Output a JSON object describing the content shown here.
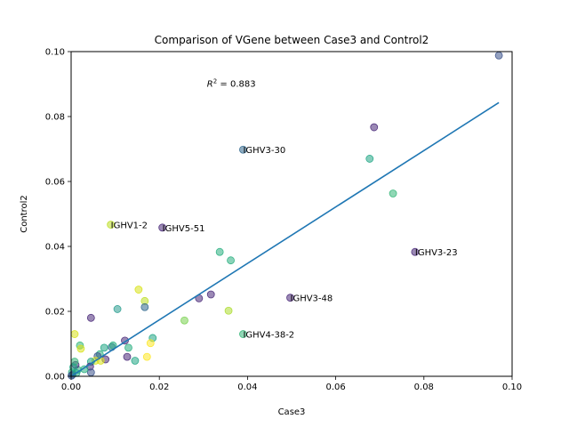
{
  "chart_data": {
    "type": "scatter",
    "title": "Comparison of VGene between Case3 and Control2",
    "xlabel": "Case3",
    "ylabel": "Control2",
    "xlim": [
      0,
      0.1
    ],
    "ylim": [
      0,
      0.1
    ],
    "xticks": [
      "0.00",
      "0.02",
      "0.04",
      "0.06",
      "0.08",
      "0.10"
    ],
    "yticks": [
      "0.00",
      "0.02",
      "0.04",
      "0.06",
      "0.08",
      "0.10"
    ],
    "r2_label": "R",
    "r2_sup": "2",
    "r2_value": " = 0.883",
    "r2_position": [
      0.03,
      0.09
    ],
    "fit_line": {
      "x": [
        0.0,
        0.097
      ],
      "y": [
        0.0,
        0.0843
      ],
      "color": "#1f77b4"
    },
    "points": [
      {
        "x": 0.097,
        "y": 0.0988,
        "color": "#3b528b"
      },
      {
        "x": 0.0687,
        "y": 0.0767,
        "color": "#482878"
      },
      {
        "x": 0.0677,
        "y": 0.067,
        "color": "#21a685"
      },
      {
        "x": 0.073,
        "y": 0.0563,
        "color": "#35b779"
      },
      {
        "x": 0.039,
        "y": 0.0698,
        "color": "#31688e"
      },
      {
        "x": 0.078,
        "y": 0.0383,
        "color": "#482878"
      },
      {
        "x": 0.009,
        "y": 0.0467,
        "color": "#bddf26"
      },
      {
        "x": 0.0207,
        "y": 0.0458,
        "color": "#482878"
      },
      {
        "x": 0.0337,
        "y": 0.0383,
        "color": "#29af7f"
      },
      {
        "x": 0.0362,
        "y": 0.0357,
        "color": "#29af7f"
      },
      {
        "x": 0.0497,
        "y": 0.0242,
        "color": "#482878"
      },
      {
        "x": 0.0317,
        "y": 0.0252,
        "color": "#482878"
      },
      {
        "x": 0.029,
        "y": 0.024,
        "color": "#482878"
      },
      {
        "x": 0.0357,
        "y": 0.0202,
        "color": "#addc30"
      },
      {
        "x": 0.039,
        "y": 0.013,
        "color": "#35b779"
      },
      {
        "x": 0.0257,
        "y": 0.0172,
        "color": "#7ad151"
      },
      {
        "x": 0.0153,
        "y": 0.0267,
        "color": "#d8e219"
      },
      {
        "x": 0.0167,
        "y": 0.0232,
        "color": "#bddf26"
      },
      {
        "x": 0.0167,
        "y": 0.0213,
        "color": "#31688e"
      },
      {
        "x": 0.0105,
        "y": 0.0207,
        "color": "#2a9d8f"
      },
      {
        "x": 0.0045,
        "y": 0.018,
        "color": "#482878"
      },
      {
        "x": 0.0185,
        "y": 0.0118,
        "color": "#21a685"
      },
      {
        "x": 0.018,
        "y": 0.0102,
        "color": "#fde725"
      },
      {
        "x": 0.0172,
        "y": 0.006,
        "color": "#fde725"
      },
      {
        "x": 0.0122,
        "y": 0.011,
        "color": "#482878"
      },
      {
        "x": 0.013,
        "y": 0.0088,
        "color": "#29af7f"
      },
      {
        "x": 0.0127,
        "y": 0.006,
        "color": "#482878"
      },
      {
        "x": 0.0145,
        "y": 0.0048,
        "color": "#21a685"
      },
      {
        "x": 0.0092,
        "y": 0.009,
        "color": "#31688e"
      },
      {
        "x": 0.0095,
        "y": 0.0095,
        "color": "#29af7f"
      },
      {
        "x": 0.0075,
        "y": 0.0088,
        "color": "#21a685"
      },
      {
        "x": 0.0078,
        "y": 0.0052,
        "color": "#482878"
      },
      {
        "x": 0.0065,
        "y": 0.0068,
        "color": "#29af7f"
      },
      {
        "x": 0.006,
        "y": 0.0062,
        "color": "#3b528b"
      },
      {
        "x": 0.0055,
        "y": 0.0048,
        "color": "#d8e219"
      },
      {
        "x": 0.0067,
        "y": 0.0048,
        "color": "#d8e219"
      },
      {
        "x": 0.0045,
        "y": 0.0045,
        "color": "#21a685"
      },
      {
        "x": 0.0043,
        "y": 0.003,
        "color": "#482878"
      },
      {
        "x": 0.0045,
        "y": 0.0012,
        "color": "#3b528b"
      },
      {
        "x": 0.002,
        "y": 0.0095,
        "color": "#35b779"
      },
      {
        "x": 0.0022,
        "y": 0.0085,
        "color": "#d8e219"
      },
      {
        "x": 0.0008,
        "y": 0.013,
        "color": "#d8e219"
      },
      {
        "x": 0.0015,
        "y": 0.002,
        "color": "#29af7f"
      },
      {
        "x": 0.001,
        "y": 0.0035,
        "color": "#482878"
      },
      {
        "x": 0.0008,
        "y": 0.0045,
        "color": "#35b779"
      },
      {
        "x": 0.0005,
        "y": 0.0028,
        "color": "#21a685"
      },
      {
        "x": 0.0002,
        "y": 0.0012,
        "color": "#29af7f"
      },
      {
        "x": 0.0003,
        "y": 0.0005,
        "color": "#31688e"
      },
      {
        "x": 0.0001,
        "y": 0.0002,
        "color": "#3b528b"
      },
      {
        "x": 0.0012,
        "y": 0.001,
        "color": "#21a685"
      },
      {
        "x": 0.003,
        "y": 0.0022,
        "color": "#29af7f"
      }
    ],
    "annotations": [
      {
        "text": "IGHV3-30",
        "x": 0.039,
        "y": 0.0698
      },
      {
        "text": "IGHV1-2",
        "x": 0.009,
        "y": 0.0467
      },
      {
        "text": "IGHV5-51",
        "x": 0.0207,
        "y": 0.0458
      },
      {
        "text": "IGHV3-23",
        "x": 0.078,
        "y": 0.0383
      },
      {
        "text": "IGHV3-48",
        "x": 0.0497,
        "y": 0.0242
      },
      {
        "text": "IGHV4-38-2",
        "x": 0.039,
        "y": 0.013
      }
    ]
  }
}
